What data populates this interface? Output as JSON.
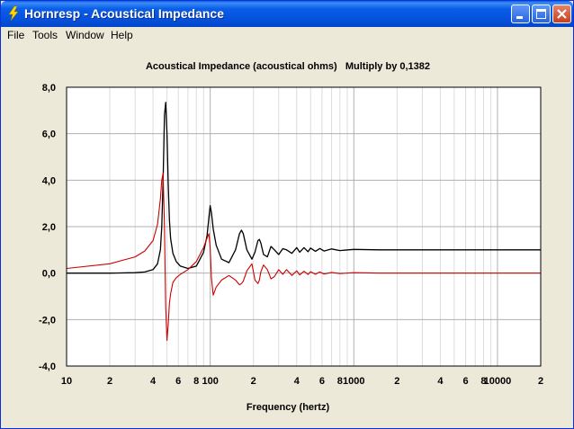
{
  "window": {
    "title": "Hornresp - Acoustical Impedance",
    "icon": "lightning-icon"
  },
  "menu": {
    "items": [
      "File",
      "Tools",
      "Window",
      "Help"
    ]
  },
  "controls": {
    "minimize": "minimize-icon",
    "maximize": "maximize-icon",
    "close": "close-icon"
  },
  "chart_data": {
    "type": "line",
    "title": "Acoustical Impedance (acoustical ohms)   Multiply by 0,1382",
    "xlabel": "Frequency (hertz)",
    "ylabel": "",
    "xscale": "log",
    "xlim": [
      10,
      20000
    ],
    "ylim": [
      -4.0,
      8.0
    ],
    "grid": true,
    "legend": "none",
    "y_ticks": [
      "8,0",
      "6,0",
      "4,0",
      "2,0",
      "0,0",
      "-2,0",
      "-4,0"
    ],
    "x_ticks": [
      {
        "value": 10,
        "label": "10"
      },
      {
        "value": 20,
        "label": "2"
      },
      {
        "value": 40,
        "label": "4"
      },
      {
        "value": 60,
        "label": "6"
      },
      {
        "value": 80,
        "label": "8"
      },
      {
        "value": 100,
        "label": "100"
      },
      {
        "value": 200,
        "label": "2"
      },
      {
        "value": 400,
        "label": "4"
      },
      {
        "value": 600,
        "label": "6"
      },
      {
        "value": 800,
        "label": "8"
      },
      {
        "value": 1000,
        "label": "1000"
      },
      {
        "value": 2000,
        "label": "2"
      },
      {
        "value": 4000,
        "label": "4"
      },
      {
        "value": 6000,
        "label": "6"
      },
      {
        "value": 8000,
        "label": "8"
      },
      {
        "value": 10000,
        "label": "10000"
      },
      {
        "value": 20000,
        "label": "2"
      }
    ],
    "series": [
      {
        "color": "#000000",
        "x": [
          10,
          20,
          30,
          35,
          40,
          43,
          45,
          46,
          47,
          48,
          49,
          50,
          51,
          52,
          53,
          55,
          58,
          62,
          70,
          80,
          90,
          95,
          98,
          100,
          102,
          105,
          110,
          120,
          135,
          150,
          160,
          165,
          170,
          180,
          195,
          205,
          215,
          220,
          225,
          235,
          250,
          265,
          280,
          300,
          320,
          340,
          370,
          400,
          420,
          450,
          480,
          500,
          540,
          580,
          620,
          700,
          800,
          1000,
          1500,
          2000,
          4000,
          10000,
          20000
        ],
        "y": [
          0.0,
          0.0,
          0.02,
          0.05,
          0.15,
          0.4,
          1.0,
          2.0,
          4.0,
          6.8,
          7.35,
          6.0,
          3.8,
          2.3,
          1.5,
          0.85,
          0.5,
          0.3,
          0.2,
          0.3,
          0.9,
          1.6,
          2.4,
          2.9,
          2.6,
          1.9,
          1.2,
          0.6,
          0.45,
          1.0,
          1.7,
          1.85,
          1.7,
          1.0,
          0.6,
          0.9,
          1.4,
          1.45,
          1.3,
          0.8,
          0.7,
          1.15,
          1.0,
          0.8,
          1.05,
          1.0,
          0.85,
          1.1,
          0.9,
          1.1,
          0.92,
          1.08,
          0.94,
          1.06,
          0.95,
          1.04,
          0.97,
          1.02,
          1.0,
          1.0,
          1.0,
          1.0,
          1.0
        ]
      },
      {
        "color": "#cc0000",
        "x": [
          10,
          20,
          30,
          35,
          40,
          43,
          45,
          46,
          47,
          48,
          49,
          50,
          51,
          52,
          53,
          55,
          58,
          62,
          70,
          80,
          90,
          95,
          98,
          100,
          102,
          105,
          110,
          120,
          135,
          150,
          160,
          165,
          170,
          180,
          195,
          205,
          215,
          220,
          225,
          235,
          250,
          265,
          280,
          300,
          320,
          340,
          370,
          400,
          420,
          450,
          480,
          500,
          540,
          580,
          620,
          700,
          800,
          1000,
          1500,
          2000,
          4000,
          10000,
          20000
        ],
        "y": [
          0.2,
          0.4,
          0.7,
          0.95,
          1.4,
          2.1,
          3.2,
          4.0,
          4.3,
          2.0,
          -1.5,
          -2.9,
          -2.2,
          -1.3,
          -0.9,
          -0.4,
          -0.2,
          -0.05,
          0.15,
          0.5,
          1.1,
          1.5,
          1.7,
          1.1,
          -0.2,
          -0.95,
          -0.6,
          -0.3,
          -0.1,
          -0.3,
          -0.5,
          -0.45,
          -0.35,
          0.1,
          0.4,
          -0.3,
          -0.45,
          -0.3,
          0.05,
          0.35,
          0.15,
          -0.25,
          -0.15,
          0.15,
          -0.05,
          0.15,
          -0.1,
          0.1,
          -0.08,
          0.08,
          -0.06,
          0.06,
          -0.05,
          0.05,
          -0.04,
          0.03,
          -0.02,
          0.02,
          0.0,
          0.0,
          0.0,
          0.0,
          0.0
        ]
      }
    ]
  }
}
